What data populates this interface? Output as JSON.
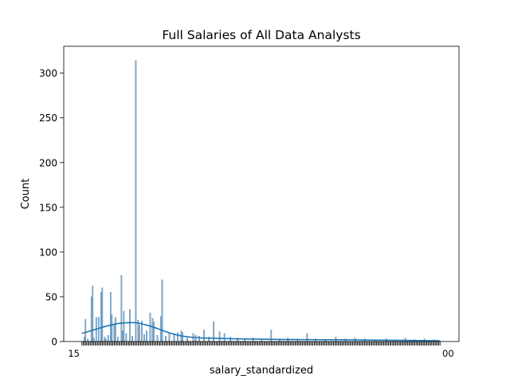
{
  "colors": {
    "bar_fill": "#8fb0cc",
    "bar_edge": "#4a86b4",
    "kde_line": "#1f77b4",
    "axis": "#000000"
  },
  "chart_data": {
    "type": "bar",
    "title": "Full Salaries of All Data Analysts",
    "xlabel": "salary_standardized",
    "ylabel": "Count",
    "ylim": [
      0,
      330
    ],
    "yticks": [
      0,
      50,
      100,
      150,
      200,
      250,
      300
    ],
    "grid": false,
    "legend": "none",
    "x_tick_labels_overlapping": true,
    "x_tick_first_label": "15",
    "x_tick_last_label": "00",
    "category_count": 300,
    "bars": [
      {
        "i": 2,
        "v": 5
      },
      {
        "i": 3,
        "v": 25
      },
      {
        "i": 5,
        "v": 3
      },
      {
        "i": 8,
        "v": 50
      },
      {
        "i": 9,
        "v": 62
      },
      {
        "i": 10,
        "v": 4
      },
      {
        "i": 12,
        "v": 27
      },
      {
        "i": 14,
        "v": 27
      },
      {
        "i": 16,
        "v": 55
      },
      {
        "i": 17,
        "v": 60
      },
      {
        "i": 19,
        "v": 5
      },
      {
        "i": 20,
        "v": 3
      },
      {
        "i": 22,
        "v": 7
      },
      {
        "i": 24,
        "v": 55
      },
      {
        "i": 25,
        "v": 30
      },
      {
        "i": 27,
        "v": 20
      },
      {
        "i": 28,
        "v": 27
      },
      {
        "i": 30,
        "v": 5
      },
      {
        "i": 33,
        "v": 74
      },
      {
        "i": 34,
        "v": 12
      },
      {
        "i": 35,
        "v": 34
      },
      {
        "i": 37,
        "v": 9
      },
      {
        "i": 40,
        "v": 36
      },
      {
        "i": 42,
        "v": 6
      },
      {
        "i": 45,
        "v": 314
      },
      {
        "i": 47,
        "v": 24
      },
      {
        "i": 48,
        "v": 18
      },
      {
        "i": 50,
        "v": 23
      },
      {
        "i": 52,
        "v": 8
      },
      {
        "i": 54,
        "v": 12
      },
      {
        "i": 57,
        "v": 32
      },
      {
        "i": 59,
        "v": 26
      },
      {
        "i": 60,
        "v": 22
      },
      {
        "i": 63,
        "v": 7
      },
      {
        "i": 66,
        "v": 28
      },
      {
        "i": 67,
        "v": 69
      },
      {
        "i": 70,
        "v": 6
      },
      {
        "i": 73,
        "v": 10
      },
      {
        "i": 77,
        "v": 9
      },
      {
        "i": 80,
        "v": 10
      },
      {
        "i": 83,
        "v": 12
      },
      {
        "i": 84,
        "v": 10
      },
      {
        "i": 88,
        "v": 4
      },
      {
        "i": 93,
        "v": 9
      },
      {
        "i": 95,
        "v": 7
      },
      {
        "i": 98,
        "v": 6
      },
      {
        "i": 102,
        "v": 13
      },
      {
        "i": 106,
        "v": 5
      },
      {
        "i": 110,
        "v": 22
      },
      {
        "i": 115,
        "v": 11
      },
      {
        "i": 119,
        "v": 9
      },
      {
        "i": 124,
        "v": 5
      },
      {
        "i": 130,
        "v": 4
      },
      {
        "i": 136,
        "v": 3
      },
      {
        "i": 143,
        "v": 4
      },
      {
        "i": 150,
        "v": 3
      },
      {
        "i": 158,
        "v": 13
      },
      {
        "i": 165,
        "v": 3
      },
      {
        "i": 172,
        "v": 4
      },
      {
        "i": 180,
        "v": 3
      },
      {
        "i": 188,
        "v": 9
      },
      {
        "i": 195,
        "v": 3
      },
      {
        "i": 203,
        "v": 2
      },
      {
        "i": 212,
        "v": 5
      },
      {
        "i": 220,
        "v": 3
      },
      {
        "i": 228,
        "v": 4
      },
      {
        "i": 236,
        "v": 3
      },
      {
        "i": 245,
        "v": 2
      },
      {
        "i": 254,
        "v": 3
      },
      {
        "i": 262,
        "v": 2
      },
      {
        "i": 270,
        "v": 4
      },
      {
        "i": 278,
        "v": 2
      },
      {
        "i": 286,
        "v": 3
      },
      {
        "i": 294,
        "v": 2
      }
    ],
    "kde": [
      {
        "i": 0,
        "v": 9
      },
      {
        "i": 10,
        "v": 13
      },
      {
        "i": 20,
        "v": 17
      },
      {
        "i": 30,
        "v": 20
      },
      {
        "i": 38,
        "v": 21
      },
      {
        "i": 45,
        "v": 21
      },
      {
        "i": 52,
        "v": 19
      },
      {
        "i": 60,
        "v": 16
      },
      {
        "i": 70,
        "v": 11
      },
      {
        "i": 80,
        "v": 7
      },
      {
        "i": 90,
        "v": 5
      },
      {
        "i": 100,
        "v": 4
      },
      {
        "i": 115,
        "v": 3.5
      },
      {
        "i": 130,
        "v": 3
      },
      {
        "i": 150,
        "v": 2.6
      },
      {
        "i": 175,
        "v": 2.2
      },
      {
        "i": 200,
        "v": 2
      },
      {
        "i": 225,
        "v": 1.8
      },
      {
        "i": 250,
        "v": 1.5
      },
      {
        "i": 275,
        "v": 1.2
      },
      {
        "i": 299,
        "v": 0.8
      }
    ]
  }
}
